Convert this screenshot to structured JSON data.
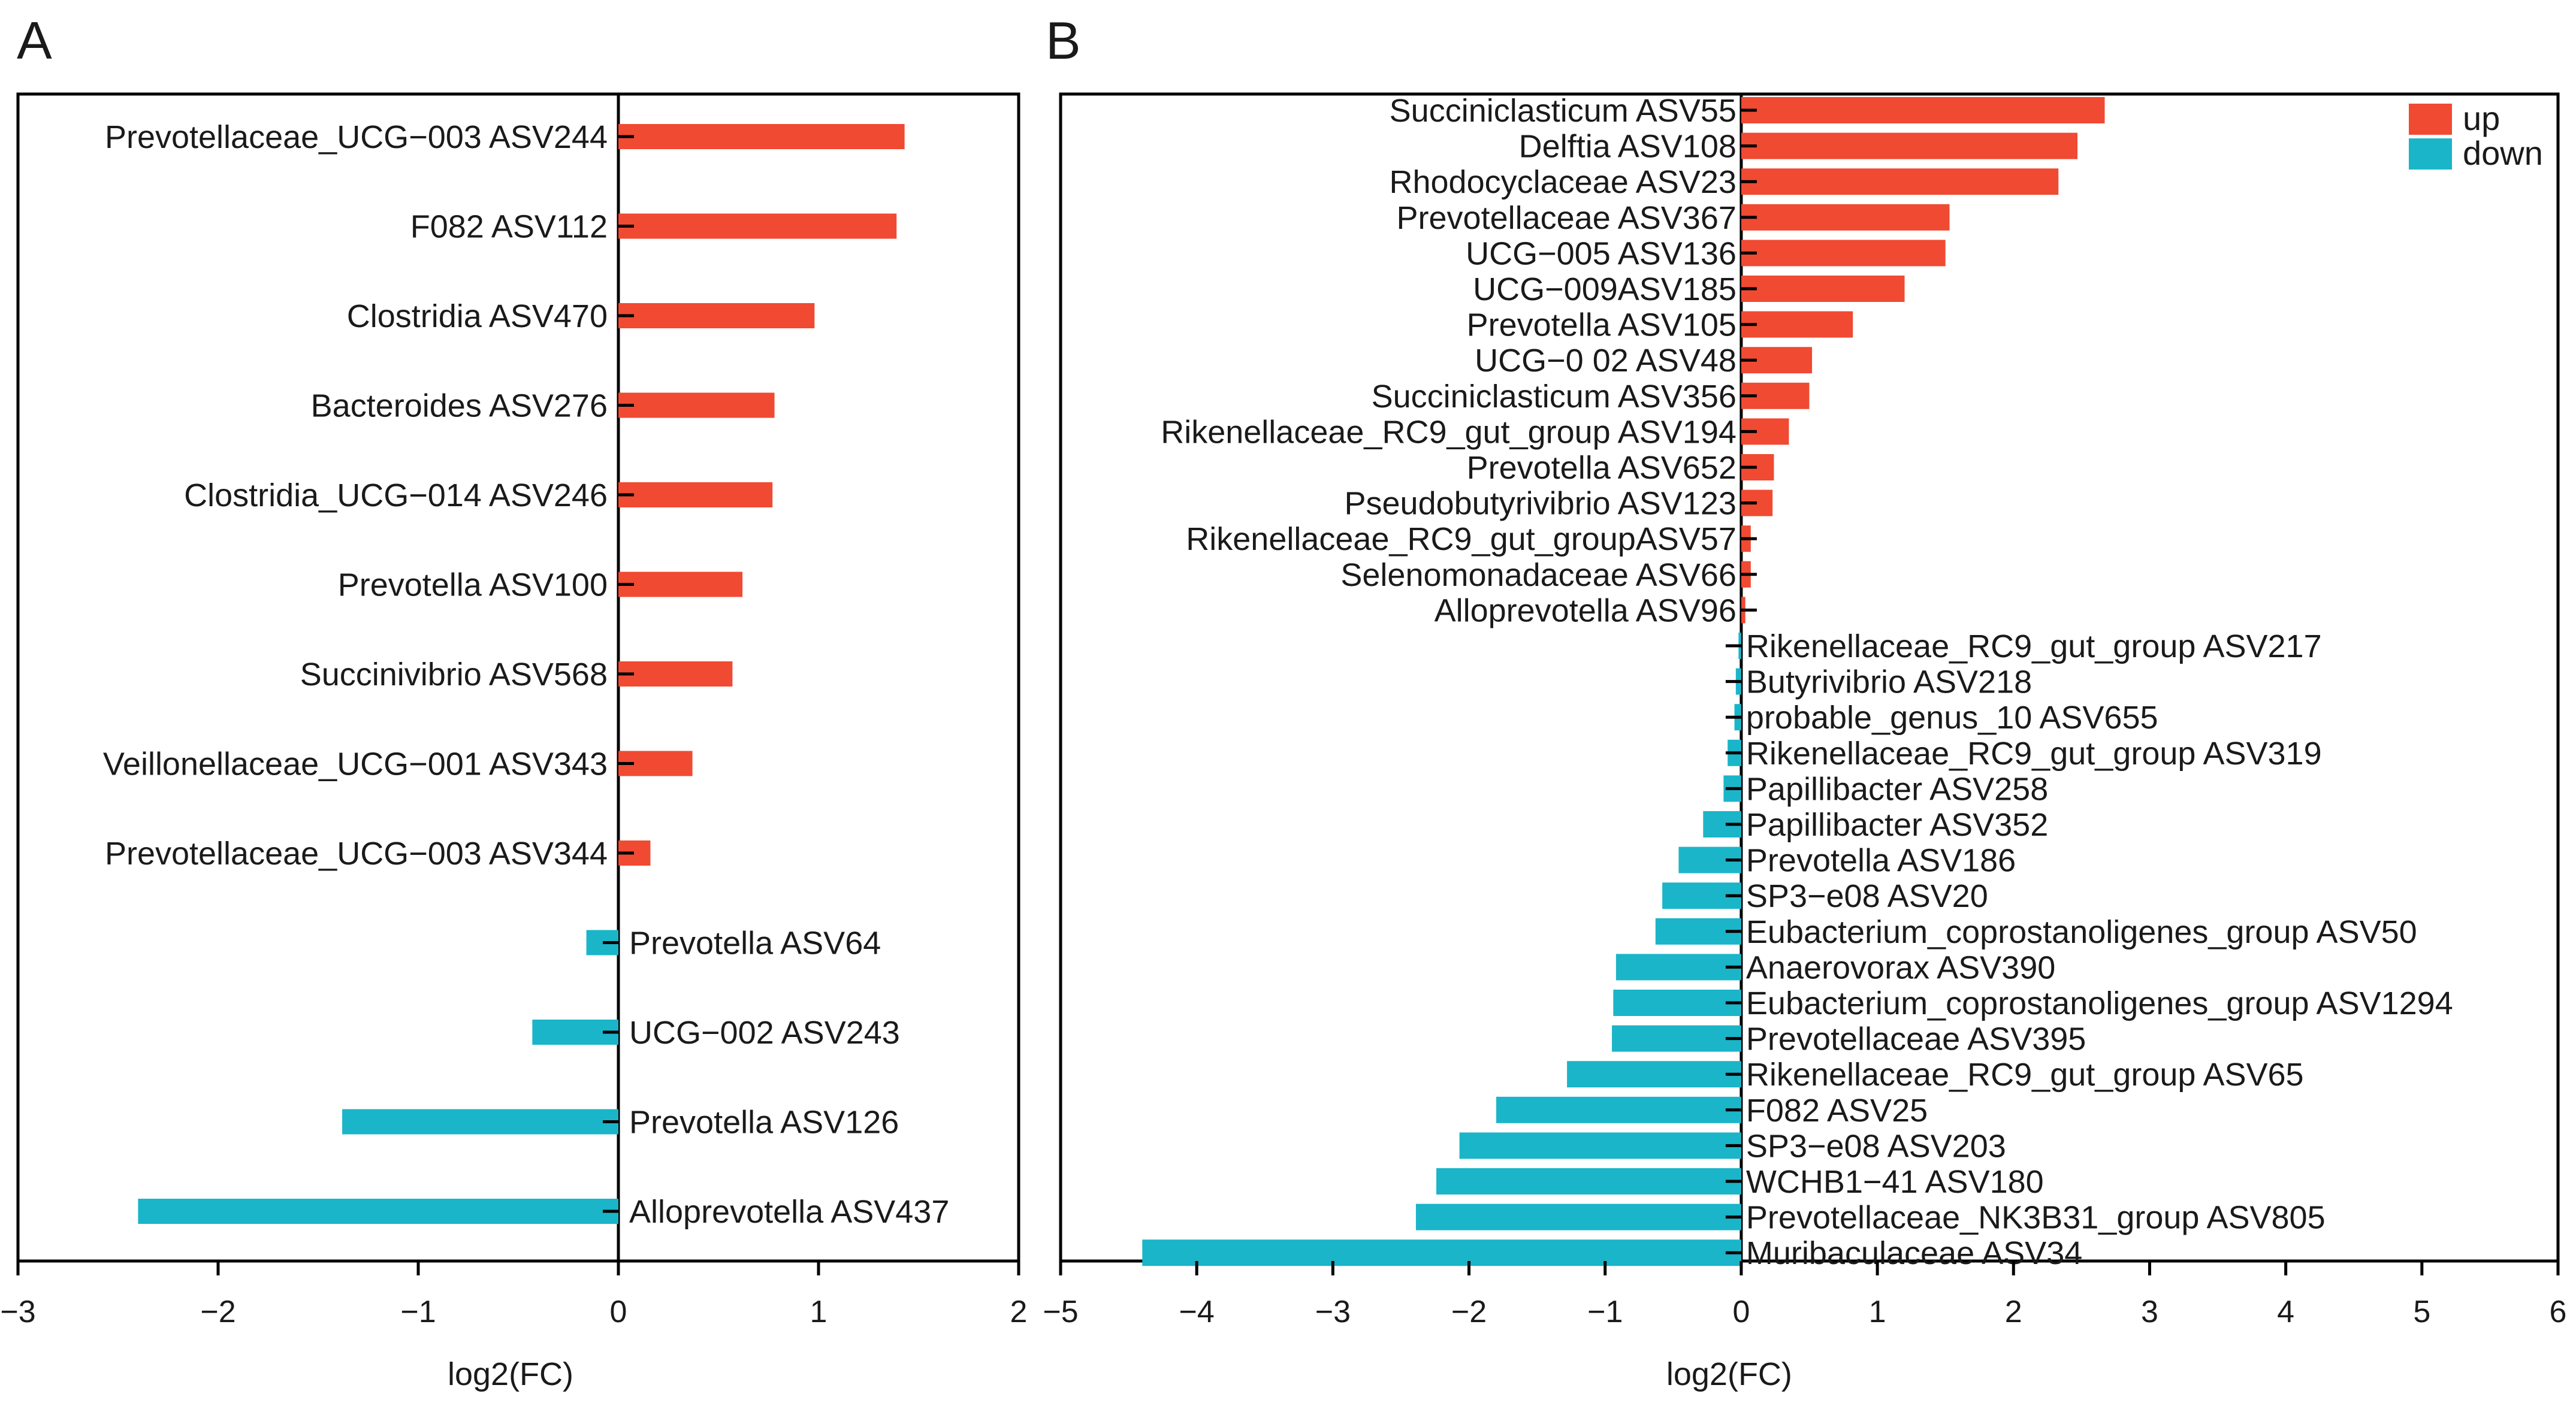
{
  "chart_data": [
    {
      "panel": "A",
      "type": "bar",
      "orientation": "horizontal",
      "xlabel": "log2(FC)",
      "xlim": [
        -3,
        2
      ],
      "xticks": [
        -3,
        -2,
        -1,
        0,
        1,
        2
      ],
      "xtick_labels": [
        "−3",
        "−2",
        "−1",
        "0",
        "1",
        "2"
      ],
      "colors": {
        "up": "#f04a32",
        "down": "#1ab5c8"
      },
      "categories": [
        "Prevotellaceae_UCG−003 ASV244",
        "F082 ASV112",
        "Clostridia ASV470",
        "Bacteroides ASV276",
        "Clostridia_UCG−014 ASV246",
        "Prevotella ASV100",
        "Succinivibrio ASV568",
        "Veillonellaceae_UCG−001 ASV343",
        "Prevotellaceae_UCG−003 ASV344",
        "Prevotella ASV64",
        "UCG−002 ASV243",
        "Prevotella ASV126",
        "Alloprevotella ASV437"
      ],
      "values": [
        1.43,
        1.39,
        0.98,
        0.78,
        0.77,
        0.62,
        0.57,
        0.37,
        0.16,
        -0.16,
        -0.43,
        -1.38,
        -2.4
      ]
    },
    {
      "panel": "B",
      "type": "bar",
      "orientation": "horizontal",
      "xlabel": "log2(FC)",
      "xlim": [
        -5,
        6
      ],
      "xticks": [
        -5,
        -4,
        -3,
        -2,
        -1,
        0,
        1,
        2,
        3,
        4,
        5,
        6
      ],
      "xtick_labels": [
        "−5",
        "−4",
        "−3",
        "−2",
        "−1",
        "0",
        "1",
        "2",
        "3",
        "4",
        "5",
        "6"
      ],
      "legend": [
        {
          "label": "up",
          "color": "#f04a32"
        },
        {
          "label": "down",
          "color": "#1ab5c8"
        }
      ],
      "legend_position": "top-right",
      "colors": {
        "up": "#f04a32",
        "down": "#1ab5c8"
      },
      "categories": [
        "Succiniclasticum ASV55",
        "Delftia ASV108",
        "Rhodocyclaceae ASV23",
        "Prevotellaceae ASV367",
        "UCG−005 ASV136",
        "UCG−009ASV185",
        "Prevotella ASV105",
        "UCG−0 02 ASV48",
        "Succiniclasticum ASV356",
        "Rikenellaceae_RC9_gut_group ASV194",
        "Prevotella ASV652",
        "Pseudobutyrivibrio ASV123",
        "Rikenellaceae_RC9_gut_groupASV57",
        "Selenomonadaceae ASV66",
        "Alloprevotella ASV96",
        "Rikenellaceae_RC9_gut_group ASV217",
        "Butyrivibrio ASV218",
        "probable_genus_10 ASV655",
        "Rikenellaceae_RC9_gut_group ASV319",
        "Papillibacter ASV258",
        "Papillibacter ASV352",
        "Prevotella ASV186",
        "SP3−e08 ASV20",
        "Eubacterium_coprostanoligenes_group ASV50",
        "Anaerovorax ASV390",
        "Eubacterium_coprostanoligenes_group ASV1294",
        "Prevotellaceae ASV395",
        "Rikenellaceae_RC9_gut_group ASV65",
        "F082 ASV25",
        "SP3−e08 ASV203",
        "WCHB1−41 ASV180",
        "Prevotellaceae_NK3B31_group ASV805",
        "Muribaculaceae ASV34"
      ],
      "values": [
        2.67,
        2.47,
        2.33,
        1.53,
        1.5,
        1.2,
        0.82,
        0.52,
        0.5,
        0.35,
        0.24,
        0.23,
        0.07,
        0.07,
        0.03,
        -0.02,
        -0.04,
        -0.05,
        -0.1,
        -0.13,
        -0.28,
        -0.46,
        -0.58,
        -0.63,
        -0.92,
        -0.94,
        -0.95,
        -1.28,
        -1.8,
        -2.07,
        -2.24,
        -2.39,
        -4.4
      ]
    }
  ]
}
